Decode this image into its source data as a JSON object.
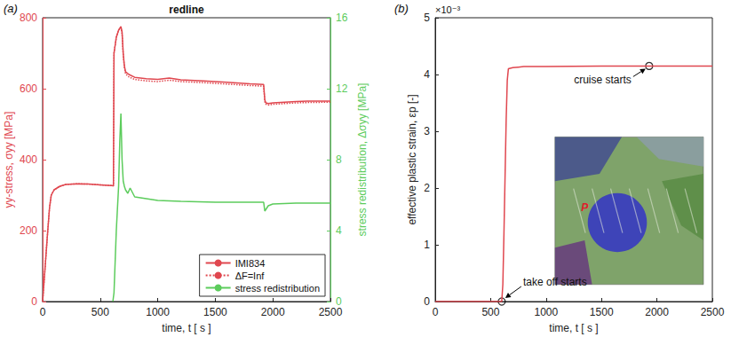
{
  "chart_data": [
    {
      "type": "line",
      "panel_label": "(a)",
      "title": "redline",
      "x_label": "time, t [ s ]",
      "y_label": "yy-stress, σyy [MPa]",
      "y2_label": "stress redistribution, Δσyy [MPa]",
      "xlim": [
        0,
        2500
      ],
      "xticks": [
        0,
        500,
        1000,
        1500,
        2000,
        2500
      ],
      "ylim": [
        0,
        800
      ],
      "yticks": [
        0,
        200,
        400,
        600,
        800
      ],
      "y2lim": [
        0,
        16
      ],
      "y2ticks": [
        0,
        4,
        8,
        12,
        16
      ],
      "grid": false,
      "legend": "lower right",
      "series": [
        {
          "name": "IMI834",
          "color": "#e0474f",
          "line_style": "solid",
          "x": [
            0,
            20,
            40,
            60,
            75,
            100,
            150,
            200,
            300,
            400,
            500,
            600,
            615,
            620,
            640,
            660,
            680,
            690,
            700,
            710,
            720,
            750,
            800,
            900,
            1000,
            1100,
            1200,
            1400,
            1600,
            1800,
            1920,
            1930,
            1940,
            1960,
            2000,
            2100,
            2200,
            2300,
            2500
          ],
          "values": [
            0,
            90,
            180,
            265,
            300,
            315,
            325,
            330,
            332,
            331,
            329,
            327,
            326,
            700,
            745,
            765,
            775,
            760,
            700,
            665,
            648,
            640,
            632,
            628,
            626,
            630,
            625,
            622,
            618,
            614,
            612,
            568,
            560,
            558,
            560,
            562,
            564,
            565,
            565
          ]
        },
        {
          "name": "ΔF=Inf",
          "color": "#e0474f",
          "line_style": "dotted",
          "x": [
            0,
            20,
            40,
            60,
            75,
            100,
            150,
            200,
            300,
            400,
            500,
            600,
            615,
            620,
            640,
            660,
            680,
            690,
            700,
            710,
            720,
            750,
            800,
            900,
            1000,
            1100,
            1200,
            1400,
            1600,
            1800,
            1920,
            1930,
            1940,
            1960,
            2000,
            2100,
            2200,
            2300,
            2500
          ],
          "values": [
            0,
            90,
            180,
            265,
            300,
            315,
            325,
            330,
            332,
            331,
            329,
            327,
            326,
            700,
            745,
            765,
            772,
            755,
            695,
            660,
            642,
            633,
            626,
            622,
            620,
            624,
            620,
            617,
            613,
            609,
            607,
            563,
            556,
            554,
            556,
            558,
            560,
            561,
            562
          ]
        },
        {
          "name": "stress redistribution",
          "color": "#5ccc5c",
          "line_style": "solid",
          "axis": "y2",
          "x": [
            610,
            620,
            640,
            660,
            670,
            680,
            690,
            700,
            710,
            720,
            740,
            760,
            800,
            900,
            1000,
            1200,
            1500,
            1800,
            1920,
            1930,
            1940,
            1960,
            2000,
            2200,
            2500
          ],
          "values": [
            0,
            0.5,
            4,
            6.5,
            9,
            10.6,
            8,
            6.8,
            6.5,
            6.3,
            6.1,
            6.4,
            5.9,
            5.8,
            5.7,
            5.65,
            5.6,
            5.6,
            5.6,
            5.1,
            5.2,
            5.4,
            5.5,
            5.55,
            5.55
          ]
        }
      ]
    },
    {
      "type": "line",
      "panel_label": "(b)",
      "x_label": "time, t [ s ]",
      "y_label": "effective plastic strain, εp [-]",
      "y_scale_label": "×10⁻³",
      "xlim": [
        0,
        2500
      ],
      "xticks": [
        0,
        500,
        1000,
        1500,
        2000,
        2500
      ],
      "ylim": [
        0,
        0.005
      ],
      "yticks": [
        0,
        {
          "value": 0.001,
          "label": "1"
        },
        {
          "value": 0.002,
          "label": "2"
        },
        {
          "value": 0.003,
          "label": "3"
        },
        {
          "value": 0.004,
          "label": "4"
        },
        {
          "value": 0.005,
          "label": "5"
        }
      ],
      "grid": false,
      "series": [
        {
          "color": "#e0474f",
          "line_style": "solid",
          "x": [
            0,
            590,
            600,
            610,
            620,
            630,
            640,
            650,
            660,
            700,
            750,
            800,
            1000,
            1500,
            1930,
            2500
          ],
          "values": [
            0,
            0,
            0,
            0.0003,
            0.0012,
            0.0022,
            0.0032,
            0.0039,
            0.0041,
            0.00412,
            0.00413,
            0.00414,
            0.00414,
            0.00415,
            0.00415,
            0.00415
          ]
        }
      ],
      "annotations": [
        {
          "text": "take off starts",
          "x": 600,
          "y": 0
        },
        {
          "text": "cruise starts",
          "x": 1930,
          "y": 0.00415
        }
      ],
      "inset_label": "P"
    }
  ]
}
